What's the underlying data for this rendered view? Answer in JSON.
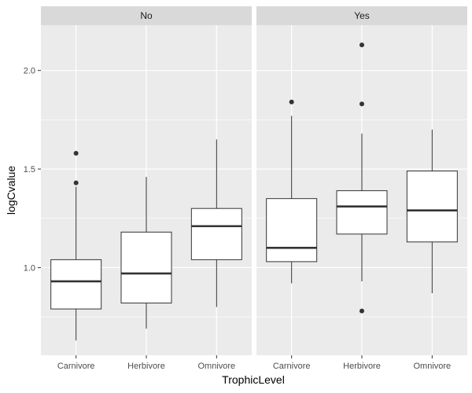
{
  "chart_data": {
    "type": "boxplot",
    "xlabel": "TrophicLevel",
    "ylabel": "logCvalue",
    "ylim": [
      0.555,
      2.23
    ],
    "yticks": [
      "1.0",
      "1.5",
      "2.0"
    ],
    "ytick_values": [
      1.0,
      1.5,
      2.0
    ],
    "minor_y": [
      0.75,
      1.25,
      1.75
    ],
    "categories": [
      "Carnivore",
      "Herbivore",
      "Omnivore"
    ],
    "grid": true,
    "panels": [
      {
        "strip": "No",
        "boxes": [
          {
            "category": "Carnivore",
            "lower_whisker": 0.63,
            "q1": 0.79,
            "median": 0.93,
            "q3": 1.04,
            "upper_whisker": 1.41,
            "outliers": [
              1.43,
              1.58
            ]
          },
          {
            "category": "Herbivore",
            "lower_whisker": 0.69,
            "q1": 0.82,
            "median": 0.97,
            "q3": 1.18,
            "upper_whisker": 1.46,
            "outliers": []
          },
          {
            "category": "Omnivore",
            "lower_whisker": 0.8,
            "q1": 1.04,
            "median": 1.21,
            "q3": 1.3,
            "upper_whisker": 1.65,
            "outliers": []
          }
        ]
      },
      {
        "strip": "Yes",
        "boxes": [
          {
            "category": "Carnivore",
            "lower_whisker": 0.92,
            "q1": 1.03,
            "median": 1.1,
            "q3": 1.35,
            "upper_whisker": 1.77,
            "outliers": [
              1.84
            ]
          },
          {
            "category": "Herbivore",
            "lower_whisker": 0.93,
            "q1": 1.17,
            "median": 1.31,
            "q3": 1.39,
            "upper_whisker": 1.68,
            "outliers": [
              1.83,
              2.13,
              0.78
            ]
          },
          {
            "category": "Omnivore",
            "lower_whisker": 0.87,
            "q1": 1.13,
            "median": 1.29,
            "q3": 1.49,
            "upper_whisker": 1.7,
            "outliers": []
          }
        ]
      }
    ],
    "colors": {
      "panel_bg": "#ebebeb",
      "strip_bg": "#d9d9d9",
      "grid": "#ffffff",
      "box_fill": "#ffffff",
      "box_line": "#333333"
    }
  }
}
